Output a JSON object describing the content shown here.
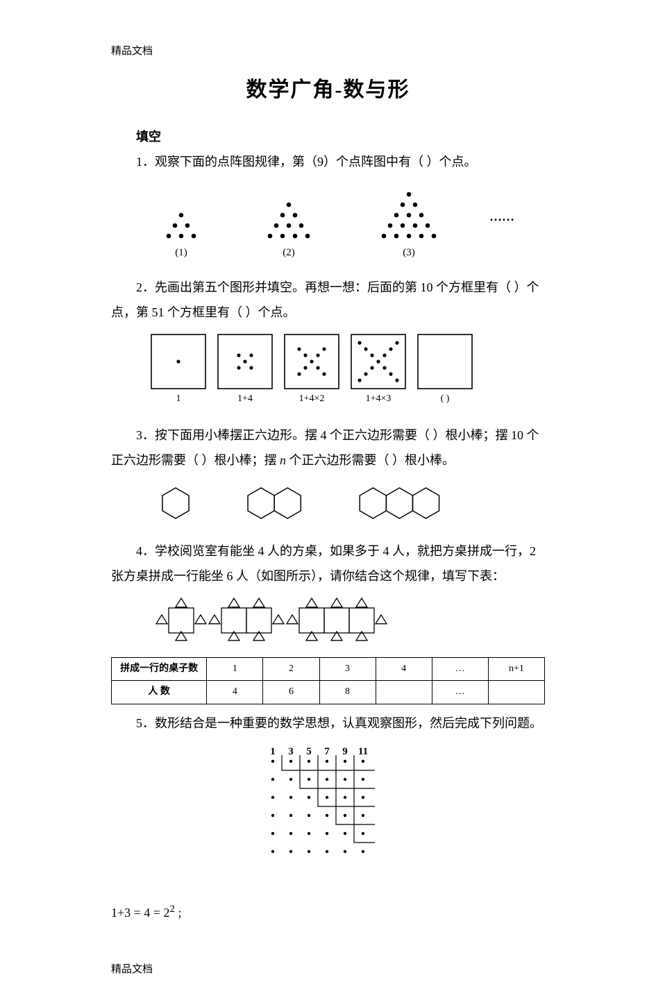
{
  "meta": {
    "header_watermark": "精品文档",
    "footer_watermark": "精品文档",
    "title": "数学广角-数与形",
    "section_label": "填空"
  },
  "palette": {
    "page_bg": "#ffffff",
    "text": "#000000",
    "stroke": "#000000",
    "fill_dot": "#000000",
    "box_stroke": "#000000"
  },
  "typography": {
    "title_fontsize_pt": 22,
    "body_fontsize_pt": 13,
    "table_fontsize_pt": 10,
    "font_family": "SimSun"
  },
  "questions": {
    "q1": {
      "text": "1．观察下面的点阵图规律，第（9）个点阵图中有（ ）个点。",
      "figure": {
        "type": "dot-pyramids",
        "items": [
          {
            "rows": [
              1,
              2,
              3
            ],
            "label": "(1)"
          },
          {
            "rows": [
              1,
              2,
              3,
              4
            ],
            "label": "(2)"
          },
          {
            "rows": [
              1,
              2,
              3,
              4,
              5
            ],
            "label": "(3)"
          }
        ],
        "dot_radius": 3.3,
        "dot_hspacing": 18,
        "dot_vspacing": 15,
        "group_gap": 110,
        "trailing_ellipsis": "……"
      }
    },
    "q2": {
      "line1": "2．先画出第五个图形并填空。再想一想：后面的第 10 个方框里有（ ）个",
      "line2": "点，第 51 个方框里有（ ）个点。",
      "figure": {
        "type": "x-dot-boxes",
        "boxes": [
          {
            "k": 0,
            "label": "1"
          },
          {
            "k": 1,
            "label": "1+4"
          },
          {
            "k": 2,
            "label": "1+4×2"
          },
          {
            "k": 3,
            "label": "1+4×3"
          },
          {
            "k": null,
            "label": "(     )"
          }
        ],
        "box_size": 78,
        "box_gap": 18,
        "dot_radius": 2.6,
        "stroke_width": 1.6
      }
    },
    "q3": {
      "line1": "3．按下面用小棒摆正六边形。摆 4 个正六边形需要（ ）根小棒；摆 10 个",
      "line2": "正六边形需要（ ）根小棒；摆 n 个正六边形需要（ ）根小棒。",
      "n_glyph": "n",
      "figure": {
        "type": "hexagon-chains",
        "groups": [
          1,
          2,
          3
        ],
        "hex_radius": 22,
        "group_gap": 85,
        "stroke_width": 1.5
      }
    },
    "q4": {
      "line1": "4．学校阅览室有能坐 4 人的方桌，如果多于 4 人，就把方桌拼成一行，2",
      "line2": "张方桌拼成一行能坐 6 人（如图所示），请你结合这个规律，填写下表：",
      "figure": {
        "type": "table-people",
        "groups": [
          1,
          2,
          3
        ],
        "square_size": 36,
        "triangle_size": 8,
        "group_gap": 40,
        "stroke_width": 1.3
      },
      "table": {
        "columns": [
          "拼成一行的桌子数",
          "1",
          "2",
          "3",
          "4",
          "…",
          "n+1"
        ],
        "rows": [
          [
            "人 数",
            "4",
            "6",
            "8",
            "",
            "…",
            ""
          ]
        ],
        "col_widths_pct": [
          22,
          13,
          13,
          13,
          13,
          13,
          13
        ]
      }
    },
    "q5": {
      "text": "5．数形结合是一种重要的数学思想，认真观察图形，然后完成下列问题。",
      "figure": {
        "type": "L-dot-grid",
        "labels_top": [
          "1",
          "3",
          "5",
          "7",
          "9",
          "11"
        ],
        "size": 6,
        "cell": 26,
        "dot_radius": 2.2,
        "line_width": 1.2
      },
      "formula": "1+3 = 4 = 2² ;"
    }
  }
}
